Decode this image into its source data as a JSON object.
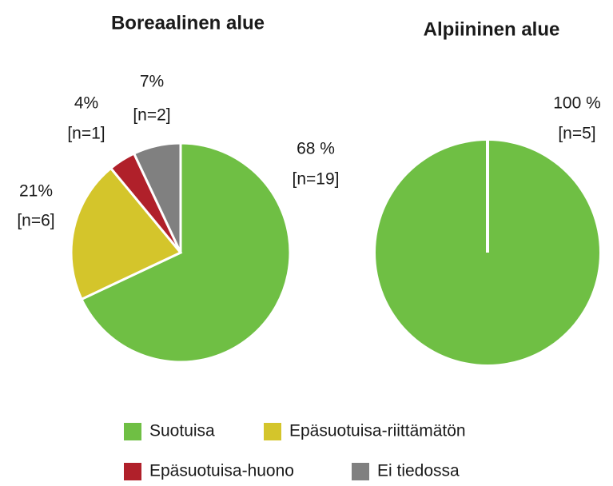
{
  "chart_data": [
    {
      "type": "pie",
      "title": "Boreaalinen alue",
      "categories": [
        "Suotuisa",
        "Epäsuotuisa-riittämätön",
        "Epäsuotuisa-huono",
        "Ei tiedossa"
      ],
      "values": [
        68,
        21,
        4,
        7
      ],
      "value_labels": [
        "68 %",
        "21%",
        "4%",
        "7%"
      ],
      "counts": [
        19,
        6,
        1,
        2
      ],
      "count_labels": [
        "[n=19]",
        "[n=6]",
        "[n=1]",
        "[n=2]"
      ],
      "colors": [
        "#6fbf44",
        "#d4c52b",
        "#b0202a",
        "#808080"
      ],
      "legend": "bottom"
    },
    {
      "type": "pie",
      "title": "Alpiininen alue",
      "values": [
        100
      ],
      "value_labels": [
        "100 %"
      ],
      "counts": [
        5
      ],
      "count_labels": [
        "[n=5]"
      ],
      "colors": [
        "#6fbf44"
      ]
    }
  ]
}
